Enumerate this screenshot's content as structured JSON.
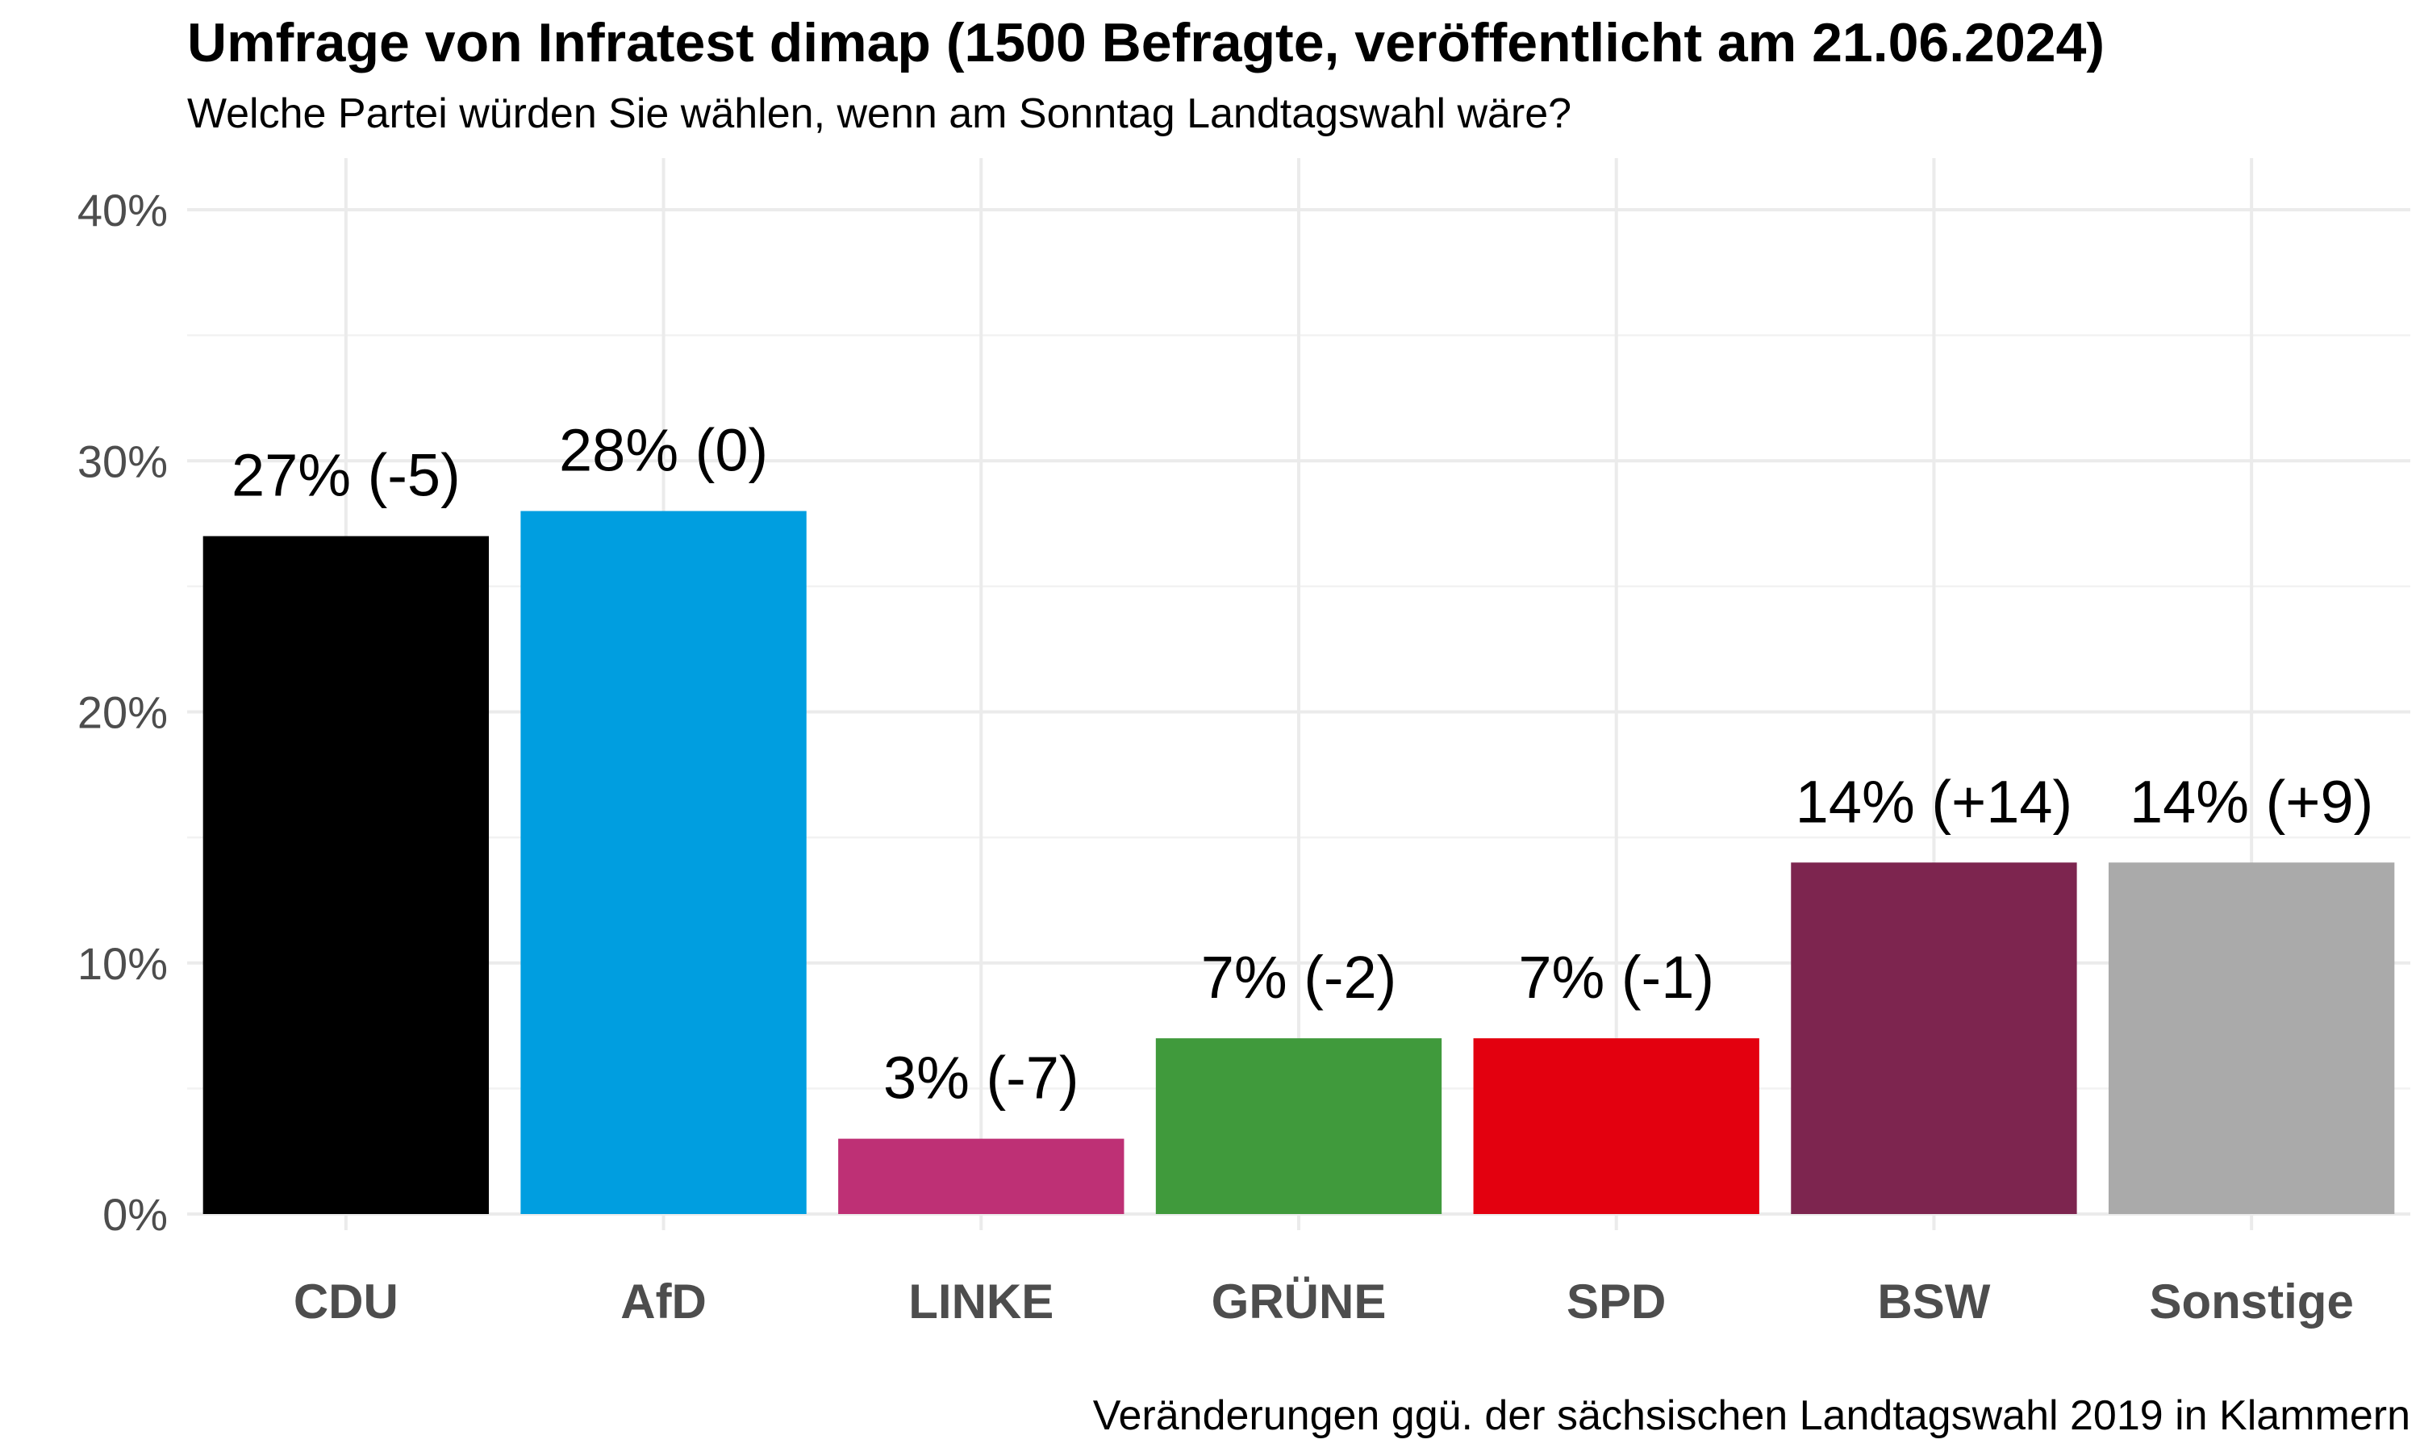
{
  "chart_data": {
    "type": "bar",
    "title": "Umfrage von Infratest dimap (1500 Befragte, veröffentlicht am 21.06.2024)",
    "subtitle": "Welche Partei würden Sie wählen, wenn am Sonntag Landtagswahl wäre?",
    "caption": "Veränderungen ggü. der sächsischen Landtagswahl 2019 in Klammern",
    "xlabel": "",
    "ylabel": "",
    "ylim": [
      0,
      40
    ],
    "yticks": [
      0,
      10,
      20,
      30,
      40
    ],
    "ytick_labels": [
      "0%",
      "10%",
      "20%",
      "30%",
      "40%"
    ],
    "grid": true,
    "legend": "none",
    "categories": [
      "CDU",
      "AfD",
      "LINKE",
      "GRÜNE",
      "SPD",
      "BSW",
      "Sonstige"
    ],
    "values": [
      27,
      28,
      3,
      7,
      7,
      14,
      14
    ],
    "labels": [
      "27% (-5)",
      "28% (0)",
      "3% (-7)",
      "7% (-2)",
      "7% (-1)",
      "14% (+14)",
      "14% (+9)"
    ],
    "colors": [
      "#000000",
      "#009ee0",
      "#be3075",
      "#409a3c",
      "#e3000f",
      "#7d254f",
      "#aaaaaa"
    ]
  }
}
